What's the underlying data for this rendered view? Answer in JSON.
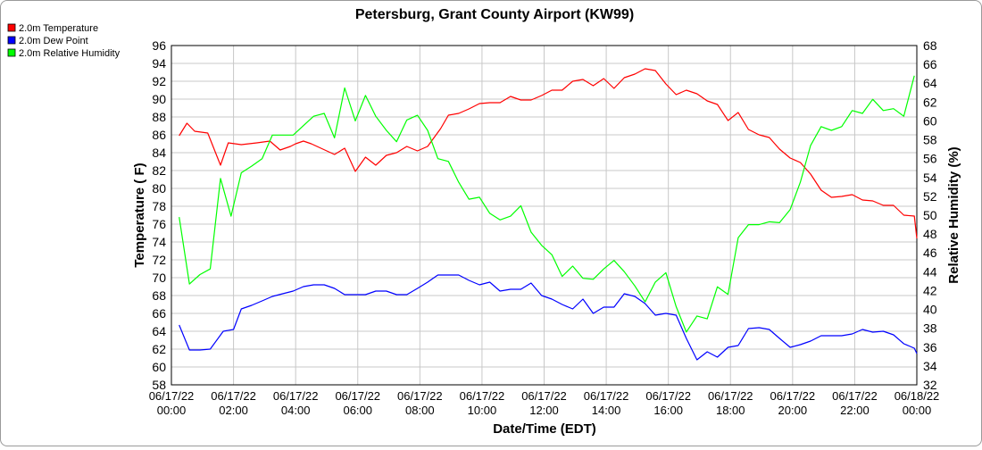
{
  "chart_data": {
    "type": "line",
    "title": "Petersburg, Grant County Airport (KW99)",
    "xlabel": "Date/Time (EDT)",
    "ylabel": "Temperature ( F)",
    "y2label": "Relative Humidity (%)",
    "ylim": [
      58,
      96
    ],
    "y2lim": [
      32,
      68
    ],
    "yticks": [
      "58",
      "60",
      "62",
      "64",
      "66",
      "68",
      "70",
      "72",
      "74",
      "76",
      "78",
      "80",
      "82",
      "84",
      "86",
      "88",
      "90",
      "92",
      "94",
      "96"
    ],
    "y2ticks": [
      "32",
      "34",
      "36",
      "38",
      "40",
      "42",
      "44",
      "46",
      "48",
      "50",
      "52",
      "54",
      "56",
      "58",
      "60",
      "62",
      "64",
      "66",
      "68"
    ],
    "xlim": [
      0,
      24
    ],
    "x_ticks": [
      {
        "date": "06/17/22",
        "time": "00:00",
        "hour": 0
      },
      {
        "date": "06/17/22",
        "time": "02:00",
        "hour": 2
      },
      {
        "date": "06/17/22",
        "time": "04:00",
        "hour": 4
      },
      {
        "date": "06/17/22",
        "time": "06:00",
        "hour": 6
      },
      {
        "date": "06/17/22",
        "time": "08:00",
        "hour": 8
      },
      {
        "date": "06/17/22",
        "time": "10:00",
        "hour": 10
      },
      {
        "date": "06/17/22",
        "time": "12:00",
        "hour": 12
      },
      {
        "date": "06/17/22",
        "time": "14:00",
        "hour": 14
      },
      {
        "date": "06/17/22",
        "time": "16:00",
        "hour": 16
      },
      {
        "date": "06/17/22",
        "time": "18:00",
        "hour": 18
      },
      {
        "date": "06/17/22",
        "time": "20:00",
        "hour": 20
      },
      {
        "date": "06/17/22",
        "time": "22:00",
        "hour": 22
      },
      {
        "date": "06/18/22",
        "time": "00:00",
        "hour": 24
      }
    ],
    "grid": true,
    "legend_position": "top-left",
    "series": [
      {
        "name": "2.0m Temperature",
        "color": "#ff0000",
        "axis": "left",
        "points": [
          [
            0.25,
            85.9
          ],
          [
            0.5,
            87.3
          ],
          [
            0.75,
            86.4
          ],
          [
            1.17,
            86.2
          ],
          [
            1.58,
            82.6
          ],
          [
            1.83,
            85.1
          ],
          [
            2.25,
            84.9
          ],
          [
            2.75,
            85.1
          ],
          [
            3.17,
            85.3
          ],
          [
            3.5,
            84.3
          ],
          [
            3.83,
            84.7
          ],
          [
            4,
            85.0
          ],
          [
            4.25,
            85.3
          ],
          [
            4.5,
            85.0
          ],
          [
            5.25,
            83.8
          ],
          [
            5.58,
            84.5
          ],
          [
            5.92,
            81.9
          ],
          [
            6.25,
            83.5
          ],
          [
            6.58,
            82.6
          ],
          [
            6.92,
            83.7
          ],
          [
            7.25,
            84.0
          ],
          [
            7.58,
            84.7
          ],
          [
            7.92,
            84.2
          ],
          [
            8.25,
            84.7
          ],
          [
            8.67,
            86.7
          ],
          [
            8.92,
            88.2
          ],
          [
            9.25,
            88.4
          ],
          [
            9.58,
            88.9
          ],
          [
            9.92,
            89.5
          ],
          [
            10.25,
            89.6
          ],
          [
            10.58,
            89.6
          ],
          [
            10.92,
            90.3
          ],
          [
            11.25,
            89.9
          ],
          [
            11.58,
            89.9
          ],
          [
            11.92,
            90.4
          ],
          [
            12.25,
            91.0
          ],
          [
            12.58,
            91.0
          ],
          [
            12.92,
            92.0
          ],
          [
            13.25,
            92.2
          ],
          [
            13.58,
            91.5
          ],
          [
            13.92,
            92.3
          ],
          [
            14.25,
            91.2
          ],
          [
            14.58,
            92.4
          ],
          [
            14.92,
            92.8
          ],
          [
            15.25,
            93.4
          ],
          [
            15.58,
            93.2
          ],
          [
            15.92,
            91.7
          ],
          [
            16.25,
            90.5
          ],
          [
            16.58,
            91.0
          ],
          [
            16.92,
            90.6
          ],
          [
            17.25,
            89.8
          ],
          [
            17.58,
            89.4
          ],
          [
            17.92,
            87.6
          ],
          [
            18.25,
            88.5
          ],
          [
            18.58,
            86.6
          ],
          [
            18.92,
            86.0
          ],
          [
            19.25,
            85.7
          ],
          [
            19.58,
            84.4
          ],
          [
            19.92,
            83.4
          ],
          [
            20.25,
            82.9
          ],
          [
            20.58,
            81.6
          ],
          [
            20.92,
            79.8
          ],
          [
            21.25,
            79.0
          ],
          [
            21.58,
            79.1
          ],
          [
            21.92,
            79.3
          ],
          [
            22.25,
            78.7
          ],
          [
            22.58,
            78.6
          ],
          [
            22.92,
            78.1
          ],
          [
            23.25,
            78.1
          ],
          [
            23.58,
            77.0
          ],
          [
            23.92,
            76.9
          ],
          [
            24.17,
            74.4
          ]
        ]
      },
      {
        "name": "2.0m Dew Point",
        "color": "#0000ff",
        "axis": "left",
        "points": [
          [
            0.25,
            64.7
          ],
          [
            0.58,
            61.9
          ],
          [
            0.92,
            61.9
          ],
          [
            1.25,
            62.0
          ],
          [
            1.67,
            64.0
          ],
          [
            2,
            64.2
          ],
          [
            2.25,
            66.5
          ],
          [
            2.58,
            66.9
          ],
          [
            2.92,
            67.4
          ],
          [
            3.25,
            67.9
          ],
          [
            3.58,
            68.2
          ],
          [
            3.92,
            68.5
          ],
          [
            4.25,
            69.0
          ],
          [
            4.58,
            69.2
          ],
          [
            4.92,
            69.2
          ],
          [
            5.25,
            68.8
          ],
          [
            5.58,
            68.1
          ],
          [
            5.92,
            68.1
          ],
          [
            6.25,
            68.1
          ],
          [
            6.58,
            68.5
          ],
          [
            6.92,
            68.5
          ],
          [
            7.25,
            68.1
          ],
          [
            7.58,
            68.1
          ],
          [
            7.92,
            68.8
          ],
          [
            8.25,
            69.5
          ],
          [
            8.58,
            70.3
          ],
          [
            8.92,
            70.3
          ],
          [
            9.25,
            70.3
          ],
          [
            9.58,
            69.7
          ],
          [
            9.92,
            69.2
          ],
          [
            10.25,
            69.5
          ],
          [
            10.58,
            68.5
          ],
          [
            10.92,
            68.7
          ],
          [
            11.25,
            68.7
          ],
          [
            11.58,
            69.4
          ],
          [
            11.92,
            68.0
          ],
          [
            12.25,
            67.6
          ],
          [
            12.58,
            67.0
          ],
          [
            12.92,
            66.5
          ],
          [
            13.25,
            67.6
          ],
          [
            13.58,
            66.0
          ],
          [
            13.92,
            66.7
          ],
          [
            14.25,
            66.7
          ],
          [
            14.58,
            68.2
          ],
          [
            14.92,
            67.9
          ],
          [
            15.25,
            67.1
          ],
          [
            15.58,
            65.8
          ],
          [
            15.92,
            66.0
          ],
          [
            16.25,
            65.8
          ],
          [
            16.58,
            63.2
          ],
          [
            16.92,
            60.8
          ],
          [
            17.25,
            61.7
          ],
          [
            17.58,
            61.1
          ],
          [
            17.92,
            62.2
          ],
          [
            18.25,
            62.4
          ],
          [
            18.58,
            64.3
          ],
          [
            18.92,
            64.4
          ],
          [
            19.25,
            64.2
          ],
          [
            19.58,
            63.2
          ],
          [
            19.92,
            62.2
          ],
          [
            20.25,
            62.5
          ],
          [
            20.58,
            62.9
          ],
          [
            20.92,
            63.5
          ],
          [
            21.25,
            63.5
          ],
          [
            21.58,
            63.5
          ],
          [
            21.92,
            63.7
          ],
          [
            22.25,
            64.2
          ],
          [
            22.58,
            63.9
          ],
          [
            22.92,
            64.0
          ],
          [
            23.25,
            63.6
          ],
          [
            23.58,
            62.6
          ],
          [
            23.92,
            62.1
          ],
          [
            24.17,
            61.5
          ]
        ]
      },
      {
        "name": "2.0m Relative Humidity",
        "color": "#00ff00",
        "axis": "right",
        "points": [
          [
            0.25,
            49.8
          ],
          [
            0.58,
            42.7
          ],
          [
            0.92,
            43.7
          ],
          [
            1.25,
            44.3
          ],
          [
            1.58,
            53.9
          ],
          [
            1.92,
            49.9
          ],
          [
            2.25,
            54.5
          ],
          [
            2.58,
            55.2
          ],
          [
            2.92,
            56.0
          ],
          [
            3.25,
            58.5
          ],
          [
            3.58,
            58.5
          ],
          [
            3.92,
            58.5
          ],
          [
            4.25,
            59.5
          ],
          [
            4.58,
            60.5
          ],
          [
            4.92,
            60.8
          ],
          [
            5.25,
            58.2
          ],
          [
            5.58,
            63.5
          ],
          [
            5.92,
            60.0
          ],
          [
            6.25,
            62.7
          ],
          [
            6.58,
            60.5
          ],
          [
            6.92,
            59.0
          ],
          [
            7.25,
            57.8
          ],
          [
            7.58,
            60.1
          ],
          [
            7.92,
            60.6
          ],
          [
            8.25,
            59.0
          ],
          [
            8.58,
            56.0
          ],
          [
            8.92,
            55.7
          ],
          [
            9.25,
            53.5
          ],
          [
            9.58,
            51.7
          ],
          [
            9.92,
            51.9
          ],
          [
            10.25,
            50.2
          ],
          [
            10.58,
            49.5
          ],
          [
            10.92,
            49.9
          ],
          [
            11.25,
            51.0
          ],
          [
            11.58,
            48.2
          ],
          [
            11.92,
            46.8
          ],
          [
            12.25,
            45.8
          ],
          [
            12.58,
            43.5
          ],
          [
            12.92,
            44.6
          ],
          [
            13.25,
            43.3
          ],
          [
            13.58,
            43.2
          ],
          [
            13.92,
            44.3
          ],
          [
            14.25,
            45.2
          ],
          [
            14.58,
            44.0
          ],
          [
            14.92,
            42.5
          ],
          [
            15.25,
            40.8
          ],
          [
            15.58,
            42.9
          ],
          [
            15.92,
            43.9
          ],
          [
            16.25,
            40.3
          ],
          [
            16.58,
            37.6
          ],
          [
            16.92,
            39.3
          ],
          [
            17.25,
            39.0
          ],
          [
            17.58,
            42.4
          ],
          [
            17.92,
            41.6
          ],
          [
            18.25,
            47.6
          ],
          [
            18.58,
            49.0
          ],
          [
            18.92,
            49.0
          ],
          [
            19.25,
            49.3
          ],
          [
            19.58,
            49.2
          ],
          [
            19.92,
            50.6
          ],
          [
            20.25,
            53.5
          ],
          [
            20.58,
            57.4
          ],
          [
            20.92,
            59.4
          ],
          [
            21.25,
            59.0
          ],
          [
            21.58,
            59.4
          ],
          [
            21.92,
            61.1
          ],
          [
            22.25,
            60.8
          ],
          [
            22.58,
            62.3
          ],
          [
            22.92,
            61.1
          ],
          [
            23.25,
            61.3
          ],
          [
            23.58,
            60.5
          ],
          [
            23.92,
            64.8
          ]
        ]
      }
    ]
  }
}
